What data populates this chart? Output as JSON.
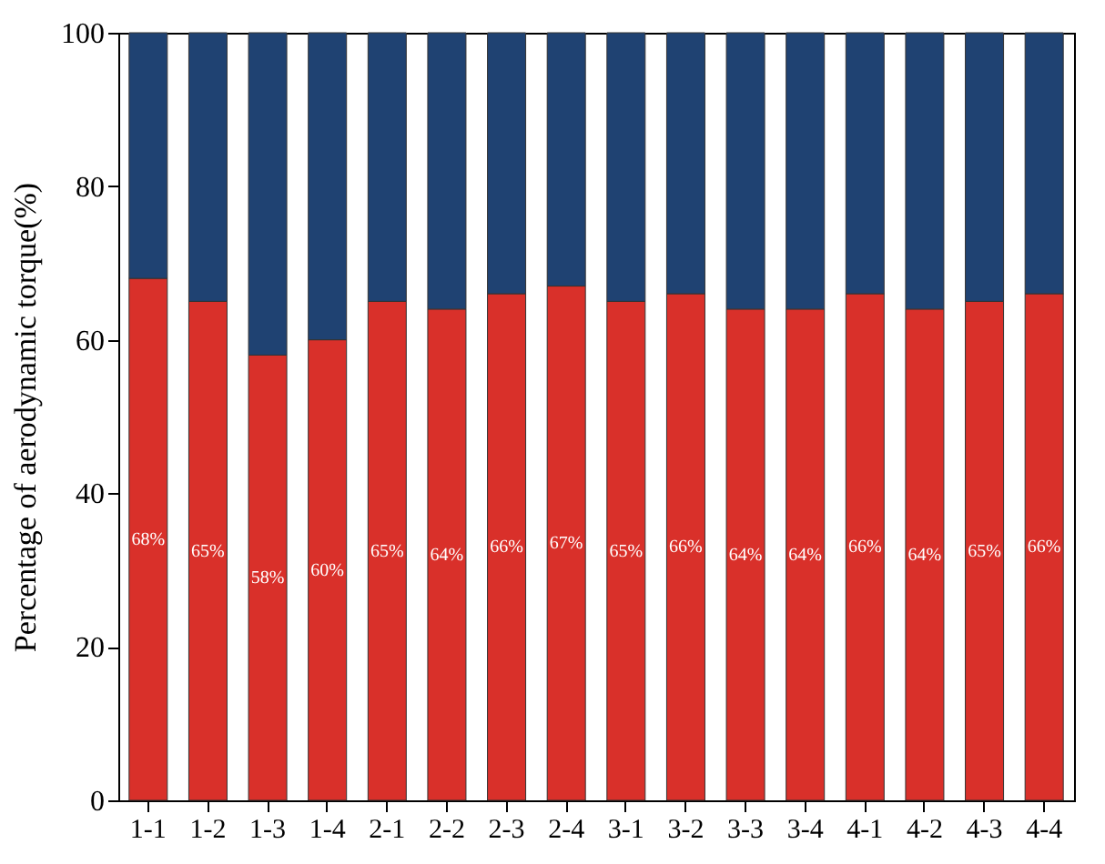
{
  "chart_data": {
    "type": "bar",
    "stacked": true,
    "ylabel": "Percentage of aerodynamic torque(%)",
    "categories": [
      "1-1",
      "1-2",
      "1-3",
      "1-4",
      "2-1",
      "2-2",
      "2-3",
      "2-4",
      "3-1",
      "3-2",
      "3-3",
      "3-4",
      "4-1",
      "4-2",
      "4-3",
      "4-4"
    ],
    "series": [
      {
        "color": "#d9302a",
        "values": [
          68,
          65,
          58,
          60,
          65,
          64,
          66,
          67,
          65,
          66,
          64,
          64,
          66,
          64,
          65,
          66
        ],
        "value_labels": [
          "68%",
          "65%",
          "58%",
          "60%",
          "65%",
          "64%",
          "66%",
          "67%",
          "65%",
          "66%",
          "64%",
          "64%",
          "66%",
          "64%",
          "65%",
          "66%"
        ]
      },
      {
        "color": "#1f4272",
        "values": [
          32,
          35,
          42,
          40,
          35,
          36,
          34,
          33,
          35,
          34,
          36,
          36,
          34,
          36,
          35,
          34
        ]
      }
    ],
    "ylim": [
      0,
      100
    ],
    "yticks": [
      0,
      20,
      40,
      60,
      80,
      100
    ],
    "grid": false,
    "legend": false
  }
}
